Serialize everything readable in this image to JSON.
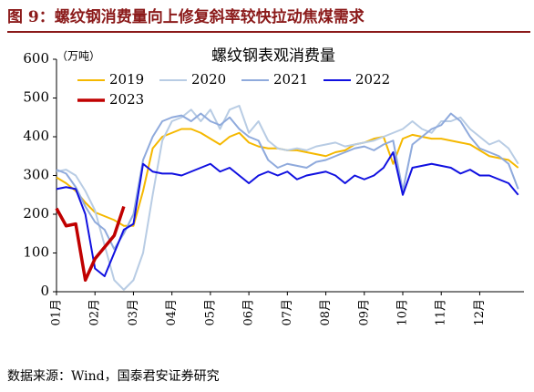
{
  "header": {
    "title": "图 9：螺纹钢消费量向上修复斜率较快拉动焦煤需求"
  },
  "chart_data": {
    "type": "line",
    "title": "螺纹钢表观消费量",
    "y_label": "（万吨）",
    "x": [
      1,
      1.25,
      1.5,
      1.75,
      2,
      2.25,
      2.5,
      2.75,
      3,
      3.25,
      3.5,
      3.75,
      4,
      4.25,
      4.5,
      4.75,
      5,
      5.25,
      5.5,
      5.75,
      6,
      6.25,
      6.5,
      6.75,
      7,
      7.25,
      7.5,
      7.75,
      8,
      8.25,
      8.5,
      8.75,
      9,
      9.25,
      9.5,
      9.75,
      10,
      10.25,
      10.5,
      10.75,
      11,
      11.25,
      11.5,
      11.75,
      12,
      12.25,
      12.5,
      12.75,
      13
    ],
    "xlim": [
      1,
      13.15
    ],
    "xticks": [
      {
        "value": 1,
        "label": "01月"
      },
      {
        "value": 2,
        "label": "02月"
      },
      {
        "value": 3,
        "label": "03月"
      },
      {
        "value": 4,
        "label": "04月"
      },
      {
        "value": 5,
        "label": "05月"
      },
      {
        "value": 6,
        "label": "06月"
      },
      {
        "value": 7,
        "label": "07月"
      },
      {
        "value": 8,
        "label": "08月"
      },
      {
        "value": 9,
        "label": "09月"
      },
      {
        "value": 10,
        "label": "10月"
      },
      {
        "value": 11,
        "label": "11月"
      },
      {
        "value": 12,
        "label": "12月"
      }
    ],
    "ylim": [
      0,
      600
    ],
    "yticks": [
      0,
      100,
      200,
      300,
      400,
      500,
      600
    ],
    "grid": false,
    "series": [
      {
        "name": "2019",
        "color": "#f5b800",
        "values": [
          295,
          280,
          260,
          230,
          205,
          195,
          185,
          170,
          170,
          260,
          370,
          400,
          410,
          420,
          420,
          410,
          395,
          380,
          400,
          410,
          385,
          375,
          370,
          370,
          365,
          365,
          360,
          355,
          350,
          360,
          365,
          380,
          385,
          395,
          400,
          330,
          395,
          405,
          400,
          395,
          395,
          390,
          385,
          380,
          365,
          350,
          345,
          340,
          320
        ]
      },
      {
        "name": "2020",
        "color": "#b8cce4",
        "values": [
          310,
          315,
          300,
          260,
          210,
          120,
          30,
          5,
          30,
          100,
          250,
          390,
          440,
          450,
          470,
          440,
          470,
          420,
          470,
          480,
          410,
          440,
          390,
          370,
          365,
          370,
          365,
          375,
          380,
          385,
          375,
          380,
          385,
          390,
          400,
          410,
          420,
          440,
          420,
          410,
          440,
          440,
          450,
          420,
          400,
          380,
          390,
          370,
          330
        ]
      },
      {
        "name": "2021",
        "color": "#8faadc",
        "values": [
          315,
          305,
          270,
          220,
          180,
          160,
          110,
          150,
          200,
          340,
          400,
          440,
          450,
          455,
          440,
          460,
          440,
          430,
          450,
          420,
          400,
          390,
          340,
          320,
          330,
          325,
          320,
          335,
          340,
          350,
          360,
          370,
          375,
          365,
          380,
          390,
          260,
          380,
          400,
          420,
          430,
          460,
          440,
          400,
          370,
          360,
          350,
          330,
          265
        ]
      },
      {
        "name": "2022",
        "color": "#1010e0",
        "values": [
          265,
          270,
          265,
          200,
          60,
          40,
          100,
          160,
          175,
          330,
          310,
          305,
          305,
          300,
          310,
          320,
          330,
          310,
          320,
          300,
          280,
          300,
          310,
          300,
          310,
          290,
          300,
          305,
          310,
          300,
          280,
          300,
          290,
          300,
          320,
          360,
          250,
          320,
          325,
          330,
          325,
          320,
          305,
          315,
          300,
          300,
          290,
          280,
          250
        ]
      },
      {
        "name": "2023",
        "color": "#c00000",
        "x": [
          1,
          1.25,
          1.5,
          1.75,
          2,
          2.25,
          2.5,
          2.75
        ],
        "values": [
          215,
          170,
          175,
          30,
          85,
          115,
          145,
          220
        ]
      }
    ]
  },
  "source": "数据来源：Wind，国泰君安证券研究"
}
